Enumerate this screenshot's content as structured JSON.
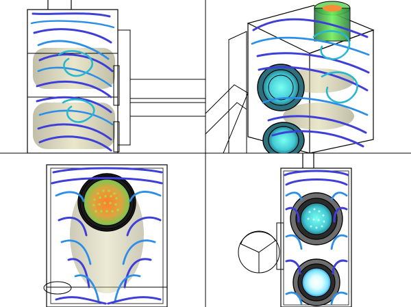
{
  "viewport": {
    "layout": "2x2 quad view"
  },
  "colors": {
    "background": "#ffffff",
    "divider": "#000000",
    "outline": "#000000",
    "streamline_primary": "#3e3fd8",
    "streamline_secondary": "#2c8ee8",
    "streamline_tertiary": "#26b7d1",
    "shell_tint": "#b7b487",
    "inlet_core": "#e58a3a",
    "inlet_ring": "#6f9f55",
    "inlet_hot": "#ff7f2a",
    "inlet_mid": "#b7cf45",
    "inlet_cool": "#51c08a",
    "cyan_core": "#4ed8d1",
    "white_core": "#f8ffff"
  },
  "views": [
    {
      "name": "left-side-view"
    },
    {
      "name": "isometric-view"
    },
    {
      "name": "top-view"
    },
    {
      "name": "front-view"
    }
  ]
}
